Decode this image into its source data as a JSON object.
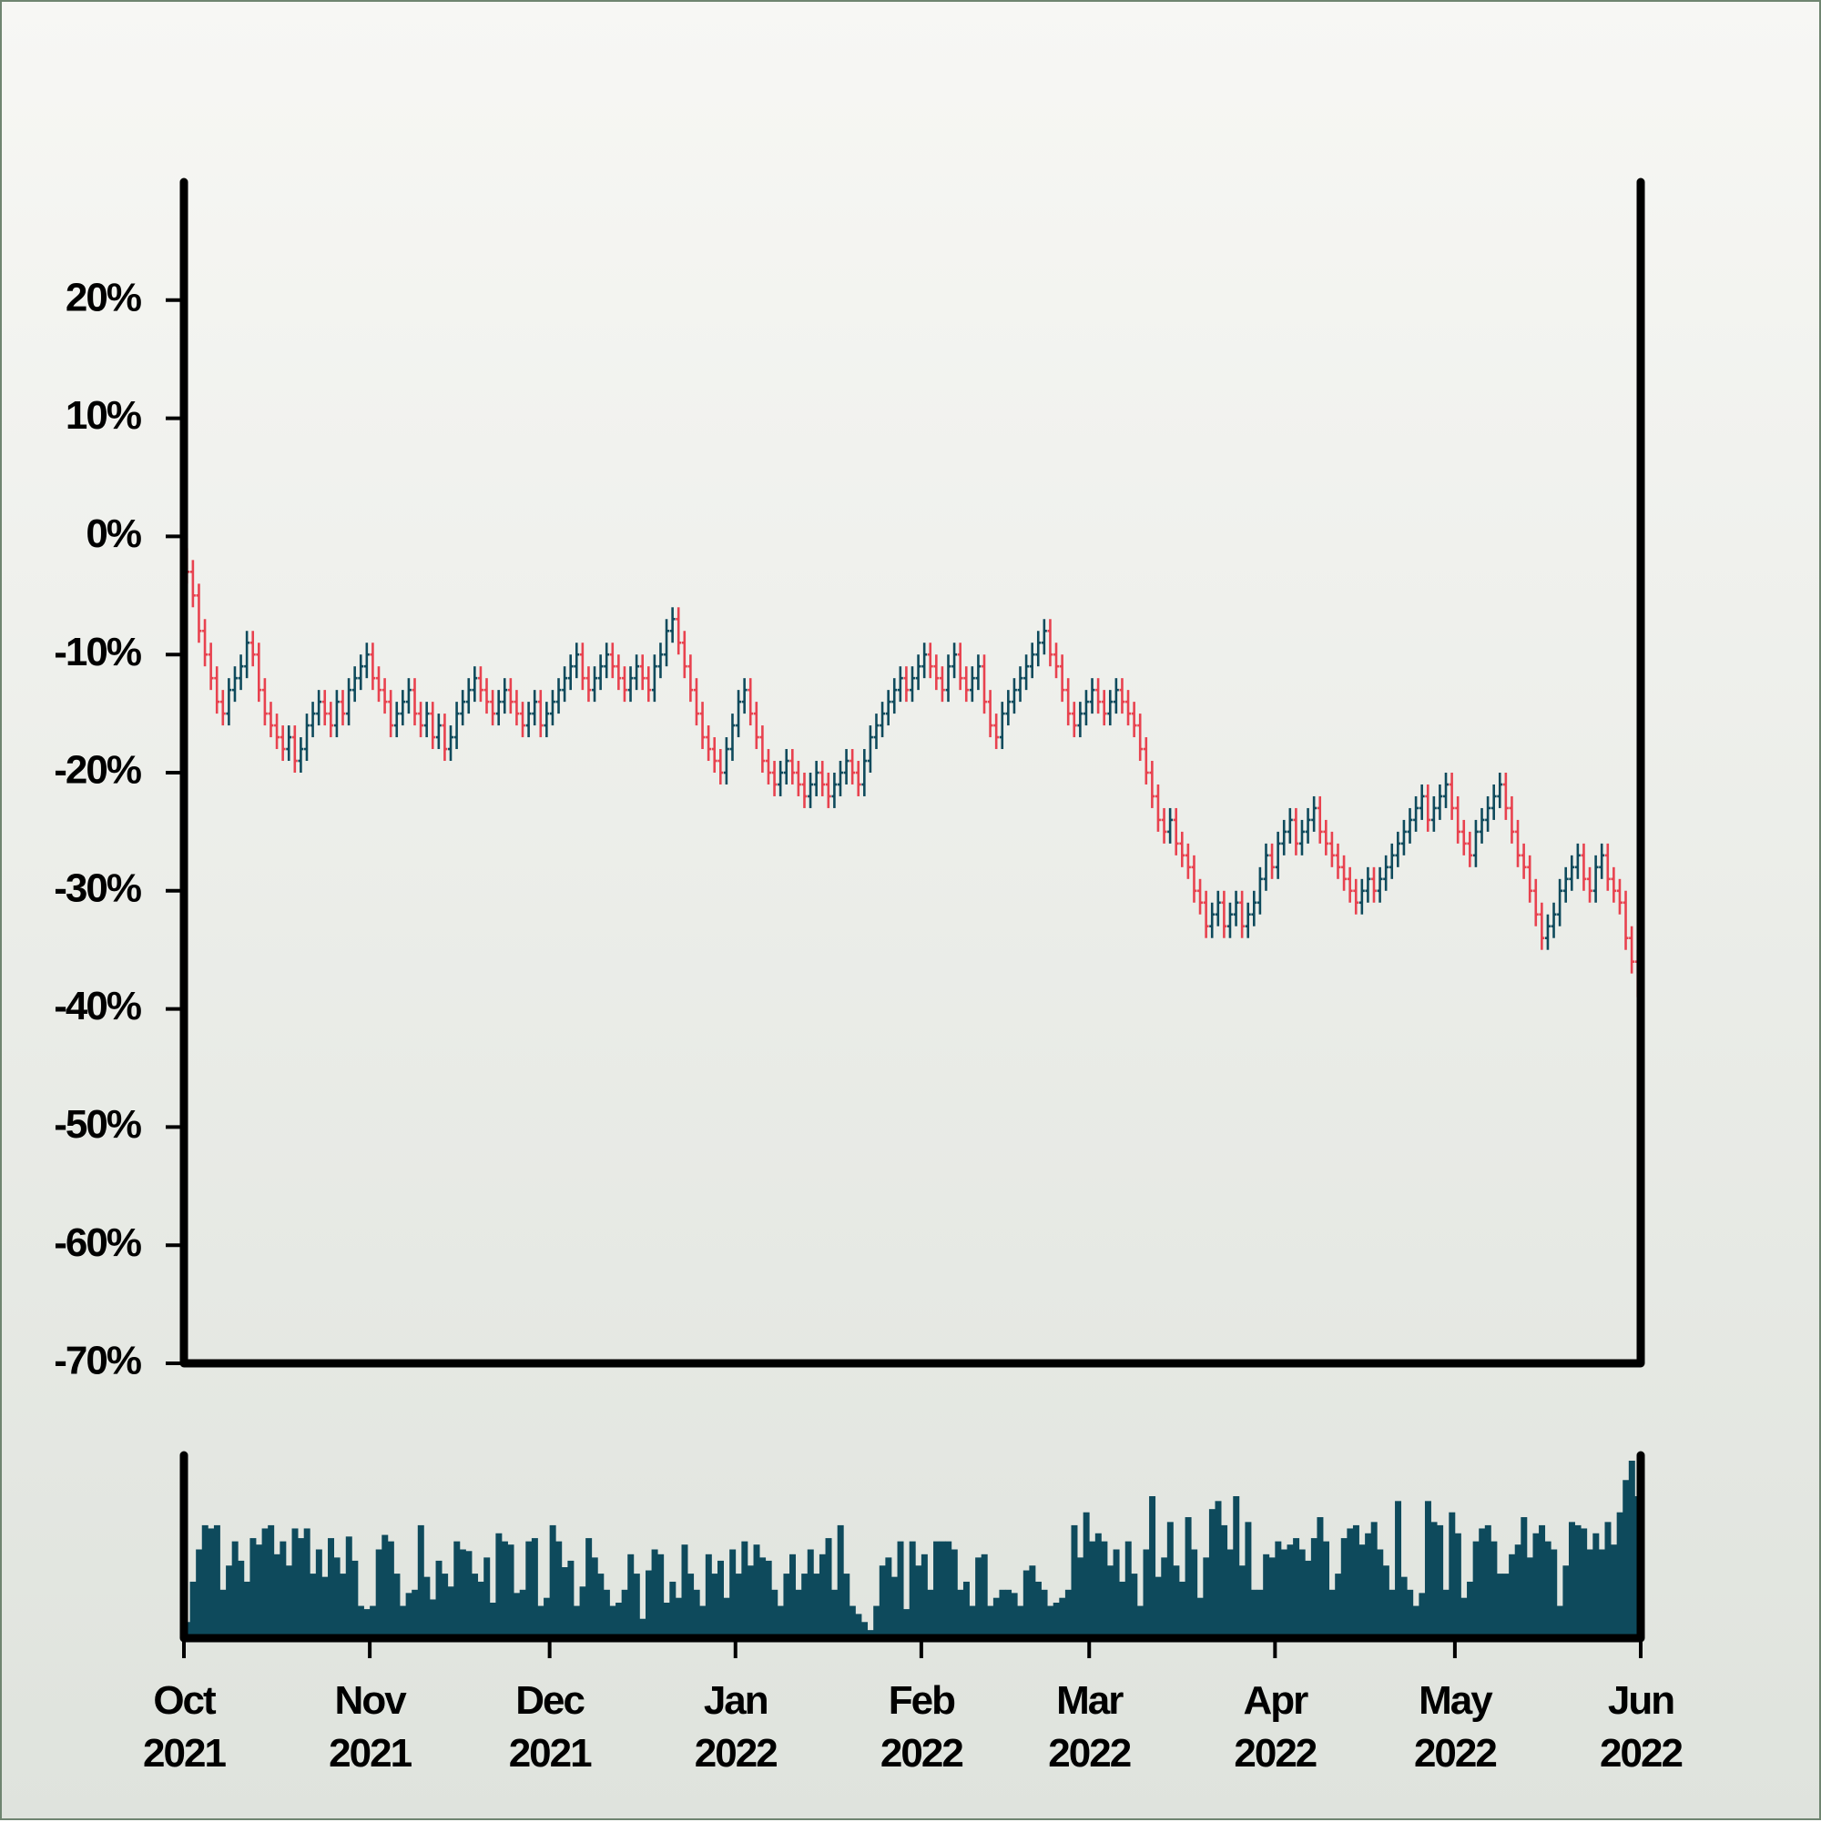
{
  "chart_data": {
    "type": "ohlc",
    "up_color": "#0e4a5c",
    "down_color": "#e8424f",
    "volume_color": "#0e4a5c",
    "xlim": [
      0,
      243
    ],
    "xticks": [
      {
        "value": 0,
        "label": "Oct 2021"
      },
      {
        "value": 31,
        "label": "Nov 2021"
      },
      {
        "value": 61,
        "label": "Dec 2021"
      },
      {
        "value": 92,
        "label": "Jan 2022"
      },
      {
        "value": 123,
        "label": "Feb 2022"
      },
      {
        "value": 151,
        "label": "Mar 2022"
      },
      {
        "value": 182,
        "label": "Apr 2022"
      },
      {
        "value": 212,
        "label": "May 2022"
      },
      {
        "value": 243,
        "label": "Jun 2022"
      }
    ],
    "ylim": [
      -70,
      30
    ],
    "yticks": [
      {
        "value": -70,
        "label": "-70%"
      },
      {
        "value": -60,
        "label": "-60%"
      },
      {
        "value": -50,
        "label": "-50%"
      },
      {
        "value": -40,
        "label": "-40%"
      },
      {
        "value": -30,
        "label": "-30%"
      },
      {
        "value": -20,
        "label": "-20%"
      },
      {
        "value": -10,
        "label": "-10%"
      },
      {
        "value": 0,
        "label": "0%"
      },
      {
        "value": 10,
        "label": "10%"
      },
      {
        "value": 20,
        "label": "20%"
      }
    ],
    "open": [
      -2,
      -3,
      -5,
      -8,
      -10,
      -12,
      -14,
      -15,
      -13,
      -12,
      -11,
      -9,
      -10,
      -13,
      -15,
      -16,
      -17,
      -18,
      -17,
      -19,
      -18,
      -16,
      -15,
      -14,
      -15,
      -16,
      -14,
      -15,
      -13,
      -12,
      -11,
      -10,
      -12,
      -13,
      -14,
      -16,
      -15,
      -14,
      -13,
      -15,
      -16,
      -15,
      -17,
      -16,
      -18,
      -17,
      -15,
      -14,
      -13,
      -12,
      -13,
      -14,
      -15,
      -14,
      -13,
      -14,
      -15,
      -16,
      -15,
      -14,
      -16,
      -15,
      -14,
      -13,
      -12,
      -11,
      -10,
      -12,
      -13,
      -12,
      -11,
      -10,
      -11,
      -12,
      -13,
      -12,
      -11,
      -12,
      -13,
      -11,
      -10,
      -8,
      -7,
      -9,
      -11,
      -13,
      -15,
      -17,
      -18,
      -19,
      -20,
      -18,
      -16,
      -14,
      -13,
      -15,
      -17,
      -19,
      -20,
      -21,
      -20,
      -19,
      -20,
      -21,
      -22,
      -21,
      -20,
      -21,
      -22,
      -21,
      -20,
      -19,
      -20,
      -21,
      -19,
      -17,
      -16,
      -15,
      -14,
      -13,
      -12,
      -13,
      -12,
      -11,
      -10,
      -11,
      -12,
      -13,
      -11,
      -10,
      -12,
      -13,
      -12,
      -11,
      -14,
      -16,
      -17,
      -15,
      -14,
      -13,
      -12,
      -11,
      -10,
      -9,
      -8,
      -10,
      -11,
      -13,
      -15,
      -16,
      -15,
      -14,
      -13,
      -14,
      -15,
      -14,
      -13,
      -14,
      -15,
      -16,
      -18,
      -20,
      -22,
      -24,
      -25,
      -24,
      -26,
      -27,
      -28,
      -30,
      -31,
      -33,
      -32,
      -31,
      -33,
      -32,
      -31,
      -33,
      -32,
      -31,
      -29,
      -27,
      -28,
      -26,
      -25,
      -24,
      -26,
      -25,
      -24,
      -23,
      -25,
      -26,
      -27,
      -28,
      -29,
      -30,
      -31,
      -30,
      -29,
      -30,
      -29,
      -28,
      -27,
      -26,
      -25,
      -24,
      -23,
      -22,
      -24,
      -23,
      -22,
      -21,
      -23,
      -25,
      -26,
      -27,
      -25,
      -24,
      -23,
      -22,
      -21,
      -23,
      -25,
      -27,
      -28,
      -30,
      -32,
      -34,
      -33,
      -32,
      -30,
      -29,
      -28,
      -27,
      -29,
      -30,
      -28,
      -27,
      -29,
      -30,
      -31,
      -34,
      -36
    ],
    "high": [
      -1,
      -2,
      -4,
      -7,
      -9,
      -11,
      -13,
      -12,
      -11,
      -10,
      -8,
      -8,
      -9,
      -12,
      -14,
      -15,
      -16,
      -16,
      -16,
      -17,
      -15,
      -14,
      -13,
      -13,
      -14,
      -13,
      -13,
      -12,
      -11,
      -10,
      -9,
      -9,
      -11,
      -12,
      -13,
      -14,
      -13,
      -12,
      -12,
      -14,
      -14,
      -14,
      -15,
      -15,
      -16,
      -14,
      -13,
      -12,
      -11,
      -11,
      -12,
      -13,
      -13,
      -12,
      -12,
      -13,
      -14,
      -14,
      -13,
      -13,
      -14,
      -13,
      -12,
      -11,
      -10,
      -9,
      -9,
      -11,
      -11,
      -10,
      -9,
      -9,
      -10,
      -11,
      -11,
      -10,
      -10,
      -11,
      -10,
      -9,
      -7,
      -6,
      -6,
      -8,
      -10,
      -12,
      -14,
      -16,
      -17,
      -18,
      -17,
      -15,
      -13,
      -12,
      -12,
      -14,
      -16,
      -18,
      -19,
      -19,
      -18,
      -18,
      -19,
      -20,
      -20,
      -19,
      -19,
      -20,
      -20,
      -19,
      -18,
      -18,
      -19,
      -18,
      -16,
      -15,
      -14,
      -13,
      -12,
      -11,
      -11,
      -11,
      -10,
      -9,
      -9,
      -10,
      -11,
      -10,
      -9,
      -9,
      -11,
      -11,
      -10,
      -10,
      -13,
      -15,
      -14,
      -13,
      -12,
      -11,
      -10,
      -9,
      -8,
      -7,
      -7,
      -9,
      -10,
      -12,
      -14,
      -14,
      -13,
      -12,
      -12,
      -13,
      -13,
      -12,
      -12,
      -13,
      -14,
      -15,
      -17,
      -19,
      -21,
      -23,
      -23,
      -23,
      -25,
      -26,
      -27,
      -29,
      -30,
      -31,
      -30,
      -30,
      -31,
      -30,
      -30,
      -31,
      -30,
      -28,
      -26,
      -26,
      -25,
      -24,
      -23,
      -23,
      -24,
      -23,
      -22,
      -22,
      -24,
      -25,
      -26,
      -27,
      -28,
      -29,
      -29,
      -28,
      -28,
      -28,
      -27,
      -26,
      -25,
      -24,
      -23,
      -22,
      -21,
      -21,
      -22,
      -21,
      -20,
      -20,
      -22,
      -24,
      -25,
      -24,
      -23,
      -22,
      -21,
      -20,
      -20,
      -22,
      -24,
      -26,
      -27,
      -29,
      -31,
      -32,
      -31,
      -29,
      -28,
      -27,
      -26,
      -26,
      -28,
      -27,
      -26,
      -26,
      -28,
      -29,
      -30,
      -33,
      -35
    ],
    "low": [
      -4,
      -6,
      -9,
      -11,
      -13,
      -15,
      -16,
      -16,
      -14,
      -13,
      -12,
      -11,
      -14,
      -16,
      -17,
      -18,
      -19,
      -19,
      -20,
      -20,
      -19,
      -17,
      -16,
      -16,
      -17,
      -17,
      -16,
      -16,
      -14,
      -13,
      -12,
      -13,
      -14,
      -15,
      -17,
      -17,
      -16,
      -15,
      -16,
      -17,
      -17,
      -18,
      -18,
      -19,
      -19,
      -18,
      -16,
      -15,
      -14,
      -14,
      -15,
      -16,
      -16,
      -15,
      -15,
      -16,
      -17,
      -17,
      -16,
      -17,
      -17,
      -16,
      -15,
      -14,
      -13,
      -12,
      -13,
      -14,
      -14,
      -13,
      -12,
      -12,
      -13,
      -14,
      -14,
      -13,
      -13,
      -14,
      -14,
      -12,
      -11,
      -9,
      -10,
      -12,
      -14,
      -16,
      -18,
      -19,
      -20,
      -21,
      -21,
      -19,
      -17,
      -15,
      -16,
      -18,
      -20,
      -21,
      -22,
      -22,
      -21,
      -21,
      -22,
      -23,
      -23,
      -22,
      -22,
      -23,
      -23,
      -22,
      -21,
      -21,
      -22,
      -22,
      -20,
      -18,
      -17,
      -16,
      -15,
      -14,
      -14,
      -14,
      -13,
      -12,
      -12,
      -13,
      -14,
      -14,
      -12,
      -13,
      -14,
      -14,
      -13,
      -15,
      -17,
      -18,
      -18,
      -16,
      -15,
      -14,
      -13,
      -12,
      -11,
      -10,
      -11,
      -12,
      -14,
      -16,
      -17,
      -17,
      -16,
      -15,
      -15,
      -16,
      -16,
      -15,
      -15,
      -16,
      -17,
      -19,
      -21,
      -23,
      -25,
      -26,
      -26,
      -27,
      -28,
      -29,
      -31,
      -32,
      -34,
      -34,
      -33,
      -34,
      -34,
      -33,
      -34,
      -34,
      -33,
      -32,
      -30,
      -29,
      -29,
      -27,
      -26,
      -27,
      -27,
      -26,
      -25,
      -26,
      -27,
      -28,
      -29,
      -30,
      -31,
      -32,
      -32,
      -31,
      -31,
      -31,
      -30,
      -29,
      -28,
      -27,
      -26,
      -25,
      -24,
      -25,
      -25,
      -24,
      -23,
      -24,
      -26,
      -27,
      -28,
      -28,
      -26,
      -25,
      -24,
      -23,
      -24,
      -26,
      -28,
      -29,
      -31,
      -33,
      -35,
      -35,
      -34,
      -33,
      -31,
      -30,
      -29,
      -30,
      -31,
      -31,
      -29,
      -30,
      -31,
      -32,
      -35,
      -37,
      -39
    ],
    "close": [
      -3,
      -5,
      -8,
      -10,
      -12,
      -14,
      -15,
      -13,
      -12,
      -11,
      -9,
      -10,
      -13,
      -15,
      -16,
      -17,
      -18,
      -17,
      -19,
      -18,
      -16,
      -15,
      -14,
      -15,
      -16,
      -14,
      -15,
      -13,
      -12,
      -11,
      -10,
      -12,
      -13,
      -14,
      -16,
      -15,
      -14,
      -13,
      -15,
      -16,
      -15,
      -17,
      -16,
      -18,
      -17,
      -15,
      -14,
      -13,
      -12,
      -13,
      -14,
      -15,
      -14,
      -13,
      -14,
      -15,
      -16,
      -15,
      -14,
      -16,
      -15,
      -14,
      -13,
      -12,
      -11,
      -10,
      -12,
      -13,
      -12,
      -11,
      -10,
      -11,
      -12,
      -13,
      -12,
      -11,
      -12,
      -13,
      -11,
      -10,
      -8,
      -7,
      -9,
      -11,
      -13,
      -15,
      -17,
      -18,
      -19,
      -20,
      -18,
      -16,
      -14,
      -13,
      -15,
      -17,
      -19,
      -20,
      -21,
      -20,
      -19,
      -20,
      -21,
      -22,
      -21,
      -20,
      -21,
      -22,
      -21,
      -20,
      -19,
      -20,
      -21,
      -19,
      -17,
      -16,
      -15,
      -14,
      -13,
      -12,
      -13,
      -12,
      -11,
      -10,
      -11,
      -12,
      -13,
      -11,
      -10,
      -12,
      -13,
      -12,
      -11,
      -14,
      -16,
      -17,
      -15,
      -14,
      -13,
      -12,
      -11,
      -10,
      -9,
      -8,
      -10,
      -11,
      -13,
      -15,
      -16,
      -15,
      -14,
      -13,
      -14,
      -15,
      -14,
      -13,
      -14,
      -15,
      -16,
      -18,
      -20,
      -22,
      -24,
      -25,
      -24,
      -26,
      -27,
      -28,
      -30,
      -31,
      -33,
      -32,
      -31,
      -33,
      -32,
      -31,
      -33,
      -32,
      -31,
      -29,
      -27,
      -28,
      -26,
      -25,
      -24,
      -26,
      -25,
      -24,
      -23,
      -25,
      -26,
      -27,
      -28,
      -29,
      -30,
      -31,
      -30,
      -29,
      -30,
      -29,
      -28,
      -27,
      -26,
      -25,
      -24,
      -23,
      -22,
      -24,
      -23,
      -22,
      -21,
      -23,
      -25,
      -26,
      -27,
      -25,
      -24,
      -23,
      -22,
      -21,
      -23,
      -25,
      -27,
      -28,
      -30,
      -32,
      -34,
      -33,
      -32,
      -30,
      -29,
      -28,
      -27,
      -29,
      -30,
      -28,
      -27,
      -29,
      -30,
      -31,
      -34,
      -36,
      -38
    ],
    "volume": [
      10,
      35,
      55,
      70,
      68,
      70,
      30,
      45,
      60,
      48,
      35,
      62,
      58,
      68,
      70,
      52,
      60,
      45,
      68,
      62,
      68,
      40,
      55,
      38,
      62,
      50,
      40,
      63,
      48,
      20,
      18,
      20,
      55,
      64,
      60,
      40,
      20,
      28,
      30,
      70,
      38,
      24,
      48,
      40,
      32,
      60,
      55,
      54,
      40,
      35,
      50,
      22,
      65,
      60,
      58,
      28,
      30,
      60,
      62,
      20,
      25,
      70,
      60,
      44,
      48,
      20,
      32,
      62,
      50,
      40,
      30,
      20,
      22,
      30,
      52,
      40,
      12,
      42,
      55,
      52,
      22,
      35,
      25,
      58,
      40,
      30,
      20,
      52,
      40,
      48,
      25,
      55,
      40,
      60,
      45,
      58,
      50,
      48,
      30,
      20,
      40,
      52,
      30,
      40,
      55,
      40,
      52,
      62,
      30,
      70,
      40,
      20,
      15,
      10,
      5,
      20,
      45,
      50,
      38,
      60,
      18,
      60,
      45,
      52,
      30,
      60,
      60,
      60,
      55,
      30,
      35,
      20,
      50,
      52,
      20,
      25,
      30,
      30,
      28,
      20,
      42,
      45,
      35,
      30,
      20,
      22,
      25,
      30,
      70,
      50,
      78,
      60,
      65,
      60,
      45,
      55,
      35,
      60,
      40,
      20,
      55,
      88,
      38,
      50,
      72,
      45,
      35,
      75,
      55,
      25,
      50,
      80,
      85,
      70,
      55,
      88,
      45,
      72,
      30,
      30,
      52,
      50,
      60,
      55,
      58,
      62,
      55,
      48,
      62,
      75,
      60,
      30,
      40,
      62,
      68,
      70,
      58,
      65,
      72,
      55,
      45,
      30,
      85,
      38,
      30,
      20,
      28,
      85,
      72,
      70,
      30,
      78,
      65,
      25,
      35,
      60,
      68,
      70,
      60,
      40,
      40,
      52,
      58,
      75,
      50,
      65,
      70,
      60,
      55,
      20,
      45,
      72,
      70,
      68,
      55,
      65,
      55,
      72,
      58,
      78,
      98,
      110,
      88
    ]
  }
}
